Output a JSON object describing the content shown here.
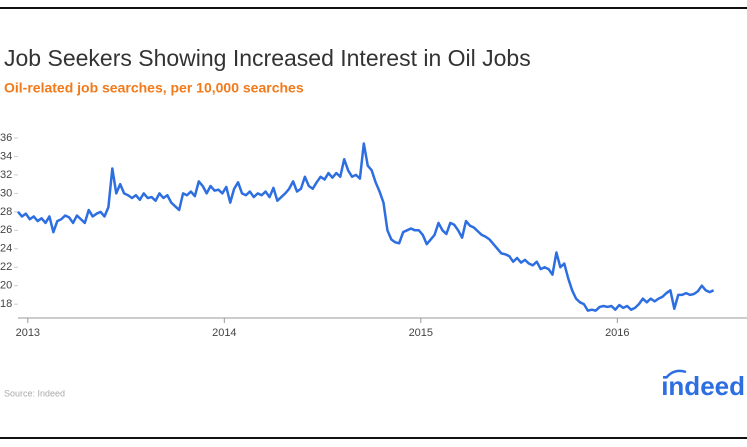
{
  "chart_data": {
    "type": "line",
    "title": "Job Seekers Showing Increased Interest in Oil Jobs",
    "subtitle": "Oil-related job searches, per 10,000 searches",
    "source": "Source: Indeed",
    "logo": "indeed",
    "color": "#2d6ee0",
    "xlim": [
      2012.95,
      2016.66
    ],
    "xticks": [
      2013,
      2014,
      2015,
      2016
    ],
    "ylim": [
      16.5,
      36
    ],
    "yticks": [
      18,
      20,
      22,
      24,
      26,
      28,
      30,
      32,
      34,
      36
    ],
    "x": [
      2012.95,
      2012.97,
      2012.99,
      2013.01,
      2013.03,
      2013.05,
      2013.07,
      2013.09,
      2013.11,
      2013.13,
      2013.15,
      2013.17,
      2013.19,
      2013.21,
      2013.23,
      2013.25,
      2013.27,
      2013.29,
      2013.31,
      2013.33,
      2013.35,
      2013.37,
      2013.39,
      2013.41,
      2013.43,
      2013.45,
      2013.47,
      2013.49,
      2013.51,
      2013.53,
      2013.55,
      2013.57,
      2013.59,
      2013.61,
      2013.63,
      2013.65,
      2013.67,
      2013.69,
      2013.71,
      2013.73,
      2013.75,
      2013.77,
      2013.79,
      2013.81,
      2013.83,
      2013.85,
      2013.87,
      2013.89,
      2013.91,
      2013.93,
      2013.95,
      2013.97,
      2013.99,
      2014.01,
      2014.03,
      2014.05,
      2014.07,
      2014.09,
      2014.11,
      2014.13,
      2014.15,
      2014.17,
      2014.19,
      2014.21,
      2014.23,
      2014.25,
      2014.27,
      2014.29,
      2014.31,
      2014.33,
      2014.35,
      2014.37,
      2014.39,
      2014.41,
      2014.43,
      2014.45,
      2014.47,
      2014.49,
      2014.51,
      2014.53,
      2014.55,
      2014.57,
      2014.59,
      2014.61,
      2014.63,
      2014.65,
      2014.67,
      2014.69,
      2014.71,
      2014.73,
      2014.75,
      2014.77,
      2014.79,
      2014.81,
      2014.83,
      2014.85,
      2014.87,
      2014.89,
      2014.91,
      2014.93,
      2014.95,
      2014.97,
      2014.99,
      2015.01,
      2015.03,
      2015.05,
      2015.07,
      2015.09,
      2015.11,
      2015.13,
      2015.15,
      2015.17,
      2015.19,
      2015.21,
      2015.23,
      2015.25,
      2015.27,
      2015.29,
      2015.31,
      2015.33,
      2015.35,
      2015.37,
      2015.39,
      2015.41,
      2015.43,
      2015.45,
      2015.47,
      2015.49,
      2015.51,
      2015.53,
      2015.55,
      2015.57,
      2015.59,
      2015.61,
      2015.63,
      2015.65,
      2015.67,
      2015.69,
      2015.71,
      2015.73,
      2015.75,
      2015.77,
      2015.79,
      2015.81,
      2015.83,
      2015.85,
      2015.87,
      2015.89,
      2015.91,
      2015.93,
      2015.95,
      2015.97,
      2015.99,
      2016.01,
      2016.03,
      2016.05,
      2016.07,
      2016.09,
      2016.11,
      2016.13,
      2016.15,
      2016.17,
      2016.19,
      2016.21,
      2016.23,
      2016.25,
      2016.27,
      2016.29,
      2016.31,
      2016.33,
      2016.35,
      2016.37,
      2016.39,
      2016.41,
      2016.43,
      2016.45,
      2016.47,
      2016.49
    ],
    "values": [
      28,
      27.5,
      27.8,
      27.2,
      27.5,
      27,
      27.3,
      26.8,
      27.5,
      25.8,
      27,
      27.2,
      27.6,
      27.4,
      26.8,
      27.6,
      27.2,
      26.8,
      28.2,
      27.5,
      27.8,
      28,
      27.5,
      28.5,
      32.7,
      30,
      31,
      30,
      29.8,
      29.5,
      29.8,
      29.3,
      30,
      29.5,
      29.6,
      29.2,
      30,
      29.5,
      29.8,
      29,
      28.6,
      28.2,
      30,
      29.8,
      30.2,
      29.7,
      31.3,
      30.8,
      30,
      30.8,
      30.3,
      30.4,
      30,
      30.7,
      29,
      30.5,
      31.2,
      30,
      29.8,
      30.2,
      29.6,
      30,
      29.8,
      30.2,
      29.6,
      30.6,
      29.2,
      29.6,
      30,
      30.5,
      31.3,
      30.2,
      30.5,
      31.8,
      30.8,
      30.5,
      31.2,
      31.8,
      31.5,
      32.2,
      31.7,
      32.2,
      31.8,
      33.7,
      32.5,
      31.8,
      32,
      31.6,
      35.4,
      33,
      32.5,
      31.2,
      30.2,
      29,
      26,
      25,
      24.7,
      24.6,
      25.8,
      26,
      26.2,
      26,
      26,
      25.5,
      24.5,
      25,
      25.5,
      26.8,
      26,
      25.6,
      26.8,
      26.6,
      26,
      25.2,
      27,
      26.5,
      26.3,
      25.9,
      25.5,
      25.3,
      25,
      24.5,
      24,
      23.5,
      23.4,
      23.2,
      22.6,
      23,
      22.5,
      22.8,
      22.4,
      22.2,
      22.6,
      21.8,
      22,
      21.8,
      21.2,
      23.6,
      22,
      22.4,
      20.8,
      19.5,
      18.6,
      18.2,
      18,
      17.3,
      17.4,
      17.3,
      17.7,
      17.8,
      17.7,
      17.8,
      17.4,
      17.9,
      17.6,
      17.8,
      17.4,
      17.6,
      18,
      18.6,
      18.2,
      18.6,
      18.3,
      18.6,
      18.8,
      19.2,
      19.5,
      17.5,
      19,
      19,
      19.2,
      19,
      19.1,
      19.4,
      20,
      19.5,
      19.3,
      19.5
    ]
  }
}
